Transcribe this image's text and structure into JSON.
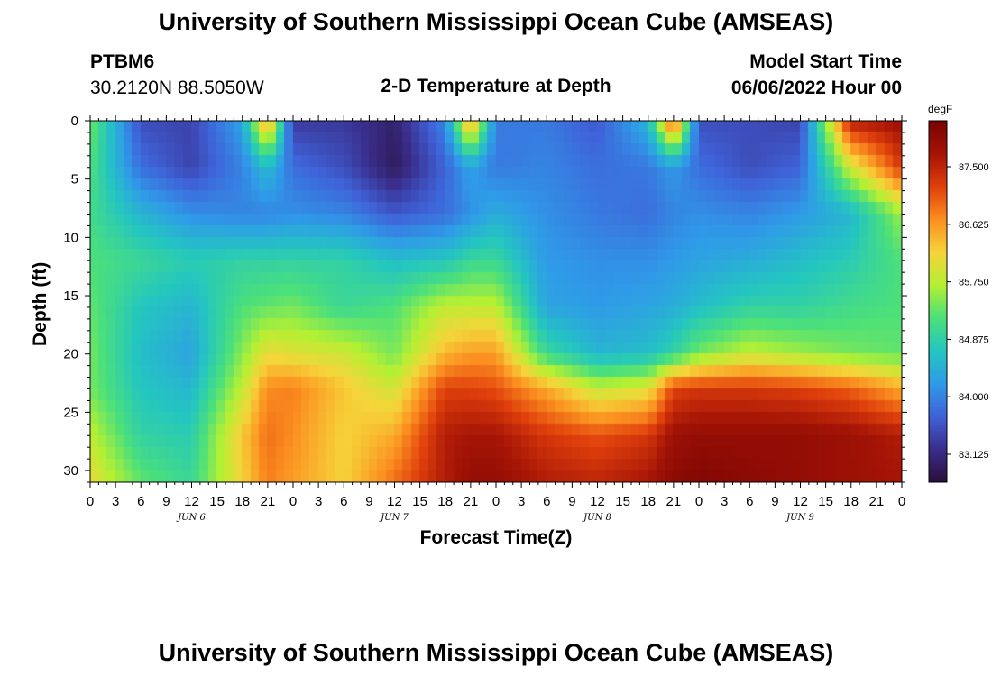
{
  "header": {
    "title": "University of Southern Mississippi Ocean Cube (AMSEAS)",
    "station_id": "PTBM6",
    "station_coords": "30.2120N  88.5050W",
    "plot_title": "2-D Temperature at Depth",
    "model_start_label": "Model Start Time",
    "model_start_value": "06/06/2022 Hour 00"
  },
  "footer": {
    "title": "University of Southern Mississippi Ocean Cube (AMSEAS)"
  },
  "colorbar": {
    "unit": "degF",
    "ticks": [
      "83.125",
      "84.000",
      "84.875",
      "85.750",
      "86.625",
      "87.500"
    ],
    "tick_values": [
      83.125,
      84.0,
      84.875,
      85.75,
      86.625,
      87.5
    ],
    "range": [
      82.7,
      88.2
    ],
    "colors": [
      "#2a0f3c",
      "#3a2e8c",
      "#3f63d9",
      "#2f9be8",
      "#24c6c0",
      "#4ce07a",
      "#b4f033",
      "#f6d43a",
      "#fb8f20",
      "#e0400c",
      "#a51406",
      "#7a0403"
    ]
  },
  "chart_data": {
    "type": "heatmap",
    "xlabel": "Forecast Time(Z)",
    "ylabel": "Depth (ft)",
    "x_tick_labels": [
      "0",
      "3",
      "6",
      "9",
      "12",
      "15",
      "18",
      "21",
      "0",
      "3",
      "6",
      "9",
      "12",
      "15",
      "18",
      "21",
      "0",
      "3",
      "6",
      "9",
      "12",
      "15",
      "18",
      "21",
      "0",
      "3",
      "6",
      "9",
      "12",
      "15",
      "18",
      "21",
      "0"
    ],
    "x_range_hours": [
      0,
      96
    ],
    "date_labels": [
      "JUN 6",
      "JUN 7",
      "JUN 8",
      "JUN 9"
    ],
    "date_label_hours": [
      12,
      36,
      60,
      84
    ],
    "y_ticks": [
      "0",
      "5",
      "10",
      "15",
      "20",
      "25",
      "30"
    ],
    "y_tick_values": [
      0,
      5,
      10,
      15,
      20,
      25,
      30
    ],
    "ylim": [
      0,
      31
    ],
    "y_inverted": true,
    "colorbar_range": [
      82.7,
      88.2
    ],
    "field": {
      "hours": [
        0,
        6,
        12,
        18,
        21,
        24,
        30,
        36,
        42,
        45,
        48,
        54,
        60,
        66,
        69,
        72,
        78,
        84,
        90,
        96
      ],
      "depths": [
        0,
        4,
        8,
        12,
        16,
        20,
        23,
        27,
        31
      ],
      "temps_degF": [
        [
          85.4,
          83.5,
          83.4,
          84.3,
          86.8,
          83.3,
          83.3,
          83.0,
          84.0,
          86.8,
          83.9,
          83.9,
          83.6,
          84.5,
          87.3,
          83.5,
          83.5,
          83.4,
          87.6,
          87.8
        ],
        [
          85.2,
          83.8,
          83.4,
          84.0,
          84.6,
          83.8,
          83.5,
          82.9,
          83.7,
          84.3,
          83.9,
          84.0,
          83.8,
          83.9,
          84.2,
          83.8,
          83.5,
          83.7,
          85.9,
          87.3
        ],
        [
          85.1,
          84.5,
          84.1,
          84.0,
          84.0,
          84.1,
          84.0,
          83.6,
          83.8,
          84.1,
          84.4,
          84.1,
          83.9,
          83.8,
          84.0,
          84.1,
          84.0,
          84.2,
          84.5,
          85.6
        ],
        [
          85.2,
          85.0,
          84.8,
          84.9,
          84.9,
          84.9,
          84.9,
          84.6,
          84.7,
          85.0,
          85.0,
          84.2,
          84.1,
          84.1,
          84.2,
          84.3,
          84.4,
          84.6,
          84.8,
          85.2
        ],
        [
          85.3,
          84.7,
          84.5,
          85.2,
          85.3,
          85.4,
          85.0,
          85.2,
          85.8,
          85.8,
          85.8,
          84.3,
          84.2,
          84.3,
          84.4,
          84.6,
          84.9,
          84.9,
          85.1,
          85.2
        ],
        [
          85.4,
          84.6,
          84.3,
          85.5,
          86.1,
          86.0,
          85.9,
          85.4,
          86.4,
          86.6,
          86.6,
          85.0,
          84.5,
          84.6,
          84.9,
          85.4,
          85.8,
          85.6,
          85.4,
          85.3
        ],
        [
          85.4,
          84.7,
          84.5,
          85.8,
          86.7,
          86.8,
          86.3,
          85.9,
          87.2,
          87.2,
          87.1,
          86.5,
          85.8,
          86.0,
          87.2,
          87.3,
          87.3,
          87.2,
          87.0,
          86.5
        ],
        [
          85.8,
          84.9,
          84.8,
          86.3,
          86.9,
          86.7,
          86.2,
          86.5,
          87.6,
          87.7,
          87.7,
          87.3,
          87.1,
          87.3,
          87.8,
          87.9,
          87.9,
          87.9,
          87.8,
          87.6
        ],
        [
          86.1,
          85.3,
          85.0,
          86.2,
          86.8,
          86.6,
          86.2,
          86.9,
          87.6,
          87.9,
          87.9,
          87.6,
          87.5,
          87.7,
          88.0,
          88.1,
          88.0,
          87.9,
          87.8,
          87.7
        ]
      ]
    }
  }
}
